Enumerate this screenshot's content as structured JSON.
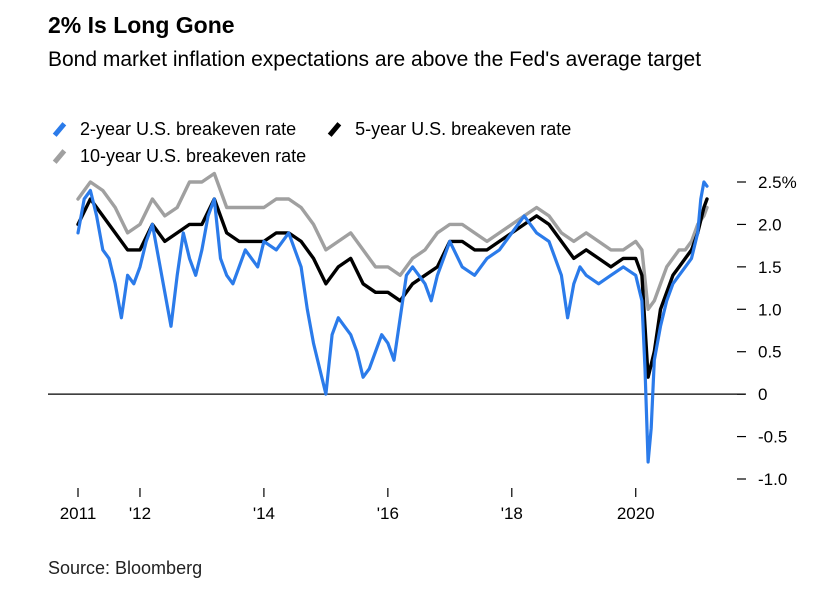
{
  "colors": {
    "two_year": "#2b7bea",
    "five_year": "#000000",
    "ten_year": "#a0a0a0",
    "axis": "#000000"
  },
  "chart_data": {
    "type": "line",
    "title": "2% Is Long Gone",
    "subtitle": "Bond market inflation expectations are above the Fed's average target",
    "source": "Source: Bloomberg",
    "xlabel": "",
    "ylabel": "",
    "ylim": [
      -1.0,
      2.5
    ],
    "xlim": [
      2011.0,
      2021.15
    ],
    "y_ticks": [
      2.5,
      2.0,
      1.5,
      1.0,
      0.5,
      0,
      -0.5,
      -1.0
    ],
    "y_tick_labels": [
      "2.5%",
      "2.0",
      "1.5",
      "1.0",
      "0.5",
      "0",
      "-0.5",
      "-1.0"
    ],
    "x_ticks": [
      2011,
      2012,
      2014,
      2016,
      2018,
      2020
    ],
    "x_tick_labels": [
      "2011",
      "'12",
      "'14",
      "'16",
      "'18",
      "2020"
    ],
    "zero_line": true,
    "series": [
      {
        "name": "2-year U.S. breakeven rate",
        "x": [
          2011.0,
          2011.1,
          2011.2,
          2011.3,
          2011.4,
          2011.5,
          2011.6,
          2011.7,
          2011.8,
          2011.9,
          2012.0,
          2012.1,
          2012.2,
          2012.3,
          2012.4,
          2012.5,
          2012.6,
          2012.7,
          2012.8,
          2012.9,
          2013.0,
          2013.1,
          2013.2,
          2013.3,
          2013.4,
          2013.5,
          2013.6,
          2013.7,
          2013.8,
          2013.9,
          2014.0,
          2014.2,
          2014.4,
          2014.6,
          2014.7,
          2014.8,
          2014.9,
          2015.0,
          2015.1,
          2015.2,
          2015.3,
          2015.4,
          2015.5,
          2015.6,
          2015.7,
          2015.8,
          2015.9,
          2016.0,
          2016.1,
          2016.2,
          2016.3,
          2016.4,
          2016.5,
          2016.6,
          2016.7,
          2016.8,
          2016.9,
          2017.0,
          2017.2,
          2017.4,
          2017.6,
          2017.8,
          2018.0,
          2018.2,
          2018.4,
          2018.6,
          2018.8,
          2018.9,
          2019.0,
          2019.1,
          2019.2,
          2019.4,
          2019.6,
          2019.8,
          2020.0,
          2020.1,
          2020.15,
          2020.2,
          2020.25,
          2020.3,
          2020.4,
          2020.5,
          2020.6,
          2020.7,
          2020.8,
          2020.9,
          2021.0,
          2021.05,
          2021.1,
          2021.15
        ],
        "values": [
          1.9,
          2.3,
          2.4,
          2.1,
          1.7,
          1.6,
          1.3,
          0.9,
          1.4,
          1.3,
          1.5,
          1.8,
          2.0,
          1.6,
          1.2,
          0.8,
          1.4,
          1.9,
          1.6,
          1.4,
          1.7,
          2.1,
          2.3,
          1.6,
          1.4,
          1.3,
          1.5,
          1.7,
          1.6,
          1.5,
          1.8,
          1.7,
          1.9,
          1.5,
          1.0,
          0.6,
          0.3,
          0.0,
          0.7,
          0.9,
          0.8,
          0.7,
          0.5,
          0.2,
          0.3,
          0.5,
          0.7,
          0.6,
          0.4,
          0.9,
          1.4,
          1.5,
          1.4,
          1.3,
          1.1,
          1.4,
          1.6,
          1.8,
          1.5,
          1.4,
          1.6,
          1.7,
          1.9,
          2.1,
          1.9,
          1.8,
          1.4,
          0.9,
          1.3,
          1.5,
          1.4,
          1.3,
          1.4,
          1.5,
          1.4,
          1.1,
          0.3,
          -0.8,
          -0.4,
          0.4,
          0.8,
          1.1,
          1.3,
          1.4,
          1.5,
          1.6,
          1.9,
          2.3,
          2.5,
          2.45
        ]
      },
      {
        "name": "5-year U.S. breakeven rate",
        "x": [
          2011.0,
          2011.2,
          2011.4,
          2011.6,
          2011.8,
          2012.0,
          2012.2,
          2012.4,
          2012.6,
          2012.8,
          2013.0,
          2013.2,
          2013.4,
          2013.6,
          2013.8,
          2014.0,
          2014.2,
          2014.4,
          2014.6,
          2014.8,
          2015.0,
          2015.2,
          2015.4,
          2015.6,
          2015.8,
          2016.0,
          2016.2,
          2016.4,
          2016.6,
          2016.8,
          2017.0,
          2017.2,
          2017.4,
          2017.6,
          2017.8,
          2018.0,
          2018.2,
          2018.4,
          2018.6,
          2018.8,
          2019.0,
          2019.2,
          2019.4,
          2019.6,
          2019.8,
          2020.0,
          2020.1,
          2020.2,
          2020.3,
          2020.4,
          2020.5,
          2020.6,
          2020.7,
          2020.8,
          2020.9,
          2021.0,
          2021.1,
          2021.15
        ],
        "values": [
          2.0,
          2.3,
          2.1,
          1.9,
          1.7,
          1.7,
          2.0,
          1.8,
          1.9,
          2.0,
          2.0,
          2.3,
          1.9,
          1.8,
          1.8,
          1.8,
          1.9,
          1.9,
          1.8,
          1.6,
          1.3,
          1.5,
          1.6,
          1.3,
          1.2,
          1.2,
          1.1,
          1.3,
          1.4,
          1.5,
          1.8,
          1.8,
          1.7,
          1.7,
          1.8,
          1.9,
          2.0,
          2.1,
          2.0,
          1.8,
          1.6,
          1.7,
          1.6,
          1.5,
          1.6,
          1.6,
          1.4,
          0.2,
          0.5,
          1.0,
          1.2,
          1.4,
          1.5,
          1.6,
          1.7,
          1.9,
          2.2,
          2.3
        ]
      },
      {
        "name": "10-year U.S. breakeven rate",
        "x": [
          2011.0,
          2011.2,
          2011.4,
          2011.6,
          2011.8,
          2012.0,
          2012.2,
          2012.4,
          2012.6,
          2012.8,
          2013.0,
          2013.2,
          2013.4,
          2013.6,
          2013.8,
          2014.0,
          2014.2,
          2014.4,
          2014.6,
          2014.8,
          2015.0,
          2015.2,
          2015.4,
          2015.6,
          2015.8,
          2016.0,
          2016.2,
          2016.4,
          2016.6,
          2016.8,
          2017.0,
          2017.2,
          2017.4,
          2017.6,
          2017.8,
          2018.0,
          2018.2,
          2018.4,
          2018.6,
          2018.8,
          2019.0,
          2019.2,
          2019.4,
          2019.6,
          2019.8,
          2020.0,
          2020.1,
          2020.2,
          2020.3,
          2020.4,
          2020.5,
          2020.6,
          2020.7,
          2020.8,
          2020.9,
          2021.0,
          2021.1,
          2021.15
        ],
        "values": [
          2.3,
          2.5,
          2.4,
          2.2,
          1.9,
          2.0,
          2.3,
          2.1,
          2.2,
          2.5,
          2.5,
          2.6,
          2.2,
          2.2,
          2.2,
          2.2,
          2.3,
          2.3,
          2.2,
          2.0,
          1.7,
          1.8,
          1.9,
          1.7,
          1.5,
          1.5,
          1.4,
          1.6,
          1.7,
          1.9,
          2.0,
          2.0,
          1.9,
          1.8,
          1.9,
          2.0,
          2.1,
          2.2,
          2.1,
          1.9,
          1.8,
          1.9,
          1.8,
          1.7,
          1.7,
          1.8,
          1.7,
          1.0,
          1.1,
          1.3,
          1.5,
          1.6,
          1.7,
          1.7,
          1.8,
          2.0,
          2.1,
          2.2
        ]
      }
    ]
  }
}
